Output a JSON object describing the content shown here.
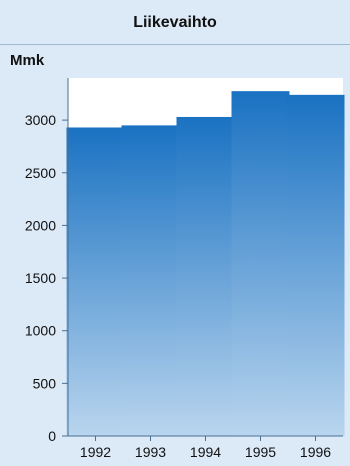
{
  "chart_data": {
    "type": "bar",
    "title": "Liikevaihto",
    "ylabel": "Mmk",
    "xlabel": "",
    "categories": [
      "1992",
      "1993",
      "1994",
      "1995",
      "1996"
    ],
    "values": [
      2930,
      2950,
      3030,
      3275,
      3240
    ],
    "ylim": [
      0,
      3400
    ],
    "yticks": [
      0,
      500,
      1000,
      1500,
      2000,
      2500,
      3000
    ],
    "grid": false,
    "legend": "none",
    "colors": {
      "background": "#dce9f6",
      "plot_area": "#ffffff",
      "bar_top": "#1a72c2",
      "bar_bottom": "#b9d5ee",
      "axis": "#4a6f93"
    }
  }
}
